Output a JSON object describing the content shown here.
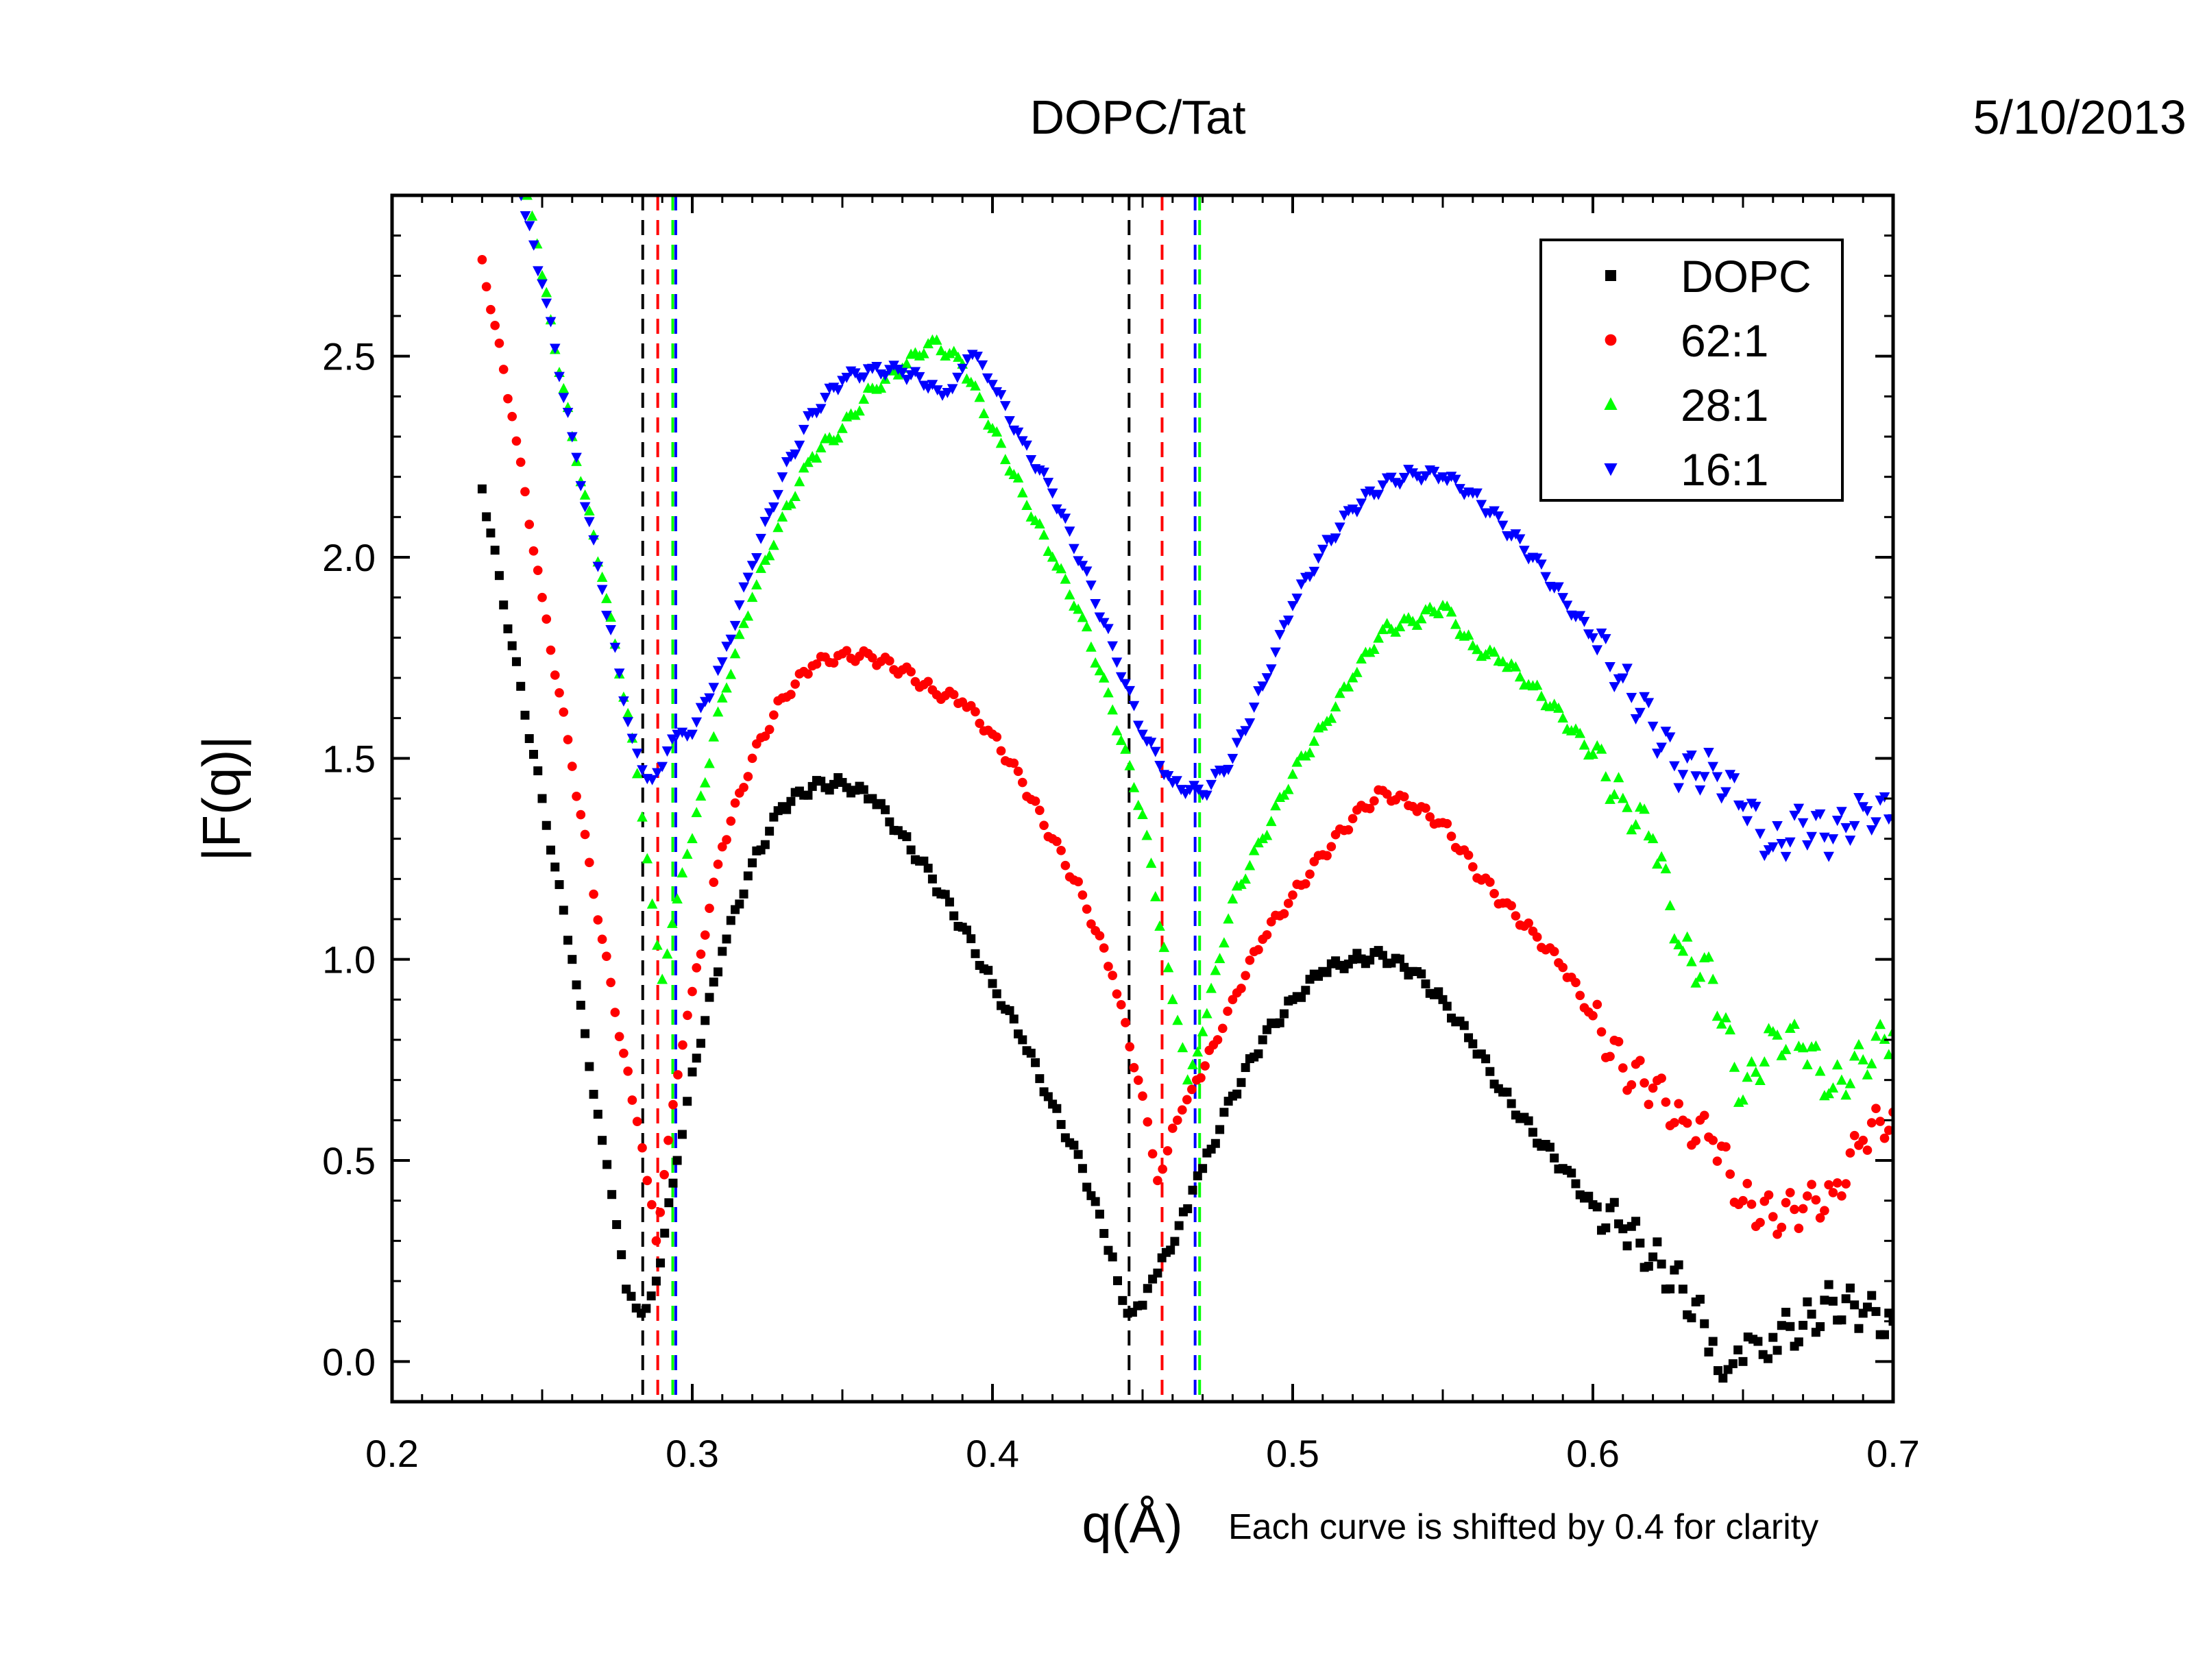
{
  "chart_data": {
    "type": "scatter",
    "title": "DOPC/Tat",
    "date": "5/10/2013",
    "xlabel": "q(Å)",
    "ylabel": "|F(q)|",
    "note": "Each curve is shifted by 0.4 for clarity",
    "xlim": [
      0.2,
      0.7
    ],
    "ylim": [
      -0.1,
      2.9
    ],
    "x_ticks": [
      "0.2",
      "0.3",
      "0.4",
      "0.5",
      "0.6",
      "0.7"
    ],
    "y_ticks": [
      "0.0",
      "0.5",
      "1.0",
      "1.5",
      "2.0",
      "2.5"
    ],
    "legend_position": "top-right",
    "grid": false,
    "series": [
      {
        "name": "DOPC",
        "color": "#000000",
        "marker": "square",
        "points": [
          [
            0.23,
            2.17
          ],
          [
            0.24,
            1.78
          ],
          [
            0.25,
            1.4
          ],
          [
            0.26,
            1.0
          ],
          [
            0.27,
            0.55
          ],
          [
            0.278,
            0.18
          ],
          [
            0.283,
            0.12
          ],
          [
            0.288,
            0.2
          ],
          [
            0.295,
            0.5
          ],
          [
            0.3,
            0.72
          ],
          [
            0.31,
            1.02
          ],
          [
            0.32,
            1.24
          ],
          [
            0.33,
            1.38
          ],
          [
            0.34,
            1.43
          ],
          [
            0.35,
            1.44
          ],
          [
            0.36,
            1.4
          ],
          [
            0.37,
            1.31
          ],
          [
            0.38,
            1.2
          ],
          [
            0.39,
            1.08
          ],
          [
            0.4,
            0.94
          ],
          [
            0.41,
            0.8
          ],
          [
            0.42,
            0.64
          ],
          [
            0.43,
            0.48
          ],
          [
            0.44,
            0.26
          ],
          [
            0.445,
            0.12
          ],
          [
            0.45,
            0.14
          ],
          [
            0.455,
            0.22
          ],
          [
            0.465,
            0.38
          ],
          [
            0.47,
            0.48
          ],
          [
            0.48,
            0.66
          ],
          [
            0.49,
            0.8
          ],
          [
            0.5,
            0.9
          ],
          [
            0.51,
            0.97
          ],
          [
            0.52,
            1.0
          ],
          [
            0.53,
            1.01
          ],
          [
            0.54,
            0.97
          ],
          [
            0.55,
            0.9
          ],
          [
            0.56,
            0.79
          ],
          [
            0.57,
            0.67
          ],
          [
            0.58,
            0.57
          ],
          [
            0.59,
            0.48
          ],
          [
            0.6,
            0.39
          ],
          [
            0.61,
            0.33
          ],
          [
            0.62,
            0.26
          ],
          [
            0.63,
            0.18
          ],
          [
            0.64,
            0.05
          ],
          [
            0.645,
            -0.02
          ],
          [
            0.65,
            0.0
          ],
          [
            0.655,
            0.05
          ],
          [
            0.66,
            0.06
          ],
          [
            0.67,
            0.09
          ],
          [
            0.68,
            0.15
          ],
          [
            0.69,
            0.12
          ],
          [
            0.7,
            0.1
          ]
        ]
      },
      {
        "name": "62:1",
        "color": "#ff0000",
        "marker": "circle",
        "points": [
          [
            0.23,
            2.74
          ],
          [
            0.24,
            2.35
          ],
          [
            0.25,
            1.9
          ],
          [
            0.26,
            1.48
          ],
          [
            0.27,
            1.05
          ],
          [
            0.28,
            0.65
          ],
          [
            0.285,
            0.45
          ],
          [
            0.288,
            0.3
          ],
          [
            0.292,
            0.55
          ],
          [
            0.3,
            0.92
          ],
          [
            0.31,
            1.28
          ],
          [
            0.32,
            1.5
          ],
          [
            0.33,
            1.65
          ],
          [
            0.34,
            1.73
          ],
          [
            0.35,
            1.76
          ],
          [
            0.36,
            1.75
          ],
          [
            0.37,
            1.72
          ],
          [
            0.38,
            1.67
          ],
          [
            0.39,
            1.64
          ],
          [
            0.4,
            1.56
          ],
          [
            0.41,
            1.44
          ],
          [
            0.42,
            1.3
          ],
          [
            0.43,
            1.16
          ],
          [
            0.44,
            0.96
          ],
          [
            0.45,
            0.66
          ],
          [
            0.455,
            0.45
          ],
          [
            0.46,
            0.58
          ],
          [
            0.468,
            0.7
          ],
          [
            0.475,
            0.8
          ],
          [
            0.48,
            0.9
          ],
          [
            0.49,
            1.05
          ],
          [
            0.5,
            1.16
          ],
          [
            0.51,
            1.26
          ],
          [
            0.52,
            1.35
          ],
          [
            0.53,
            1.42
          ],
          [
            0.54,
            1.38
          ],
          [
            0.55,
            1.34
          ],
          [
            0.56,
            1.23
          ],
          [
            0.57,
            1.14
          ],
          [
            0.58,
            1.07
          ],
          [
            0.59,
            0.98
          ],
          [
            0.6,
            0.86
          ],
          [
            0.61,
            0.73
          ],
          [
            0.62,
            0.68
          ],
          [
            0.63,
            0.6
          ],
          [
            0.64,
            0.55
          ],
          [
            0.65,
            0.4
          ],
          [
            0.66,
            0.36
          ],
          [
            0.67,
            0.38
          ],
          [
            0.68,
            0.42
          ],
          [
            0.69,
            0.55
          ],
          [
            0.7,
            0.62
          ]
        ]
      },
      {
        "name": "28:1",
        "color": "#00ff00",
        "marker": "triangle-up",
        "points": [
          [
            0.245,
            2.9
          ],
          [
            0.25,
            2.7
          ],
          [
            0.26,
            2.3
          ],
          [
            0.27,
            1.95
          ],
          [
            0.28,
            1.55
          ],
          [
            0.285,
            1.25
          ],
          [
            0.29,
            0.95
          ],
          [
            0.295,
            1.15
          ],
          [
            0.3,
            1.3
          ],
          [
            0.31,
            1.65
          ],
          [
            0.32,
            1.9
          ],
          [
            0.33,
            2.1
          ],
          [
            0.34,
            2.25
          ],
          [
            0.35,
            2.32
          ],
          [
            0.36,
            2.42
          ],
          [
            0.37,
            2.47
          ],
          [
            0.38,
            2.54
          ],
          [
            0.39,
            2.48
          ],
          [
            0.4,
            2.32
          ],
          [
            0.41,
            2.16
          ],
          [
            0.42,
            2.0
          ],
          [
            0.43,
            1.85
          ],
          [
            0.44,
            1.62
          ],
          [
            0.45,
            1.36
          ],
          [
            0.46,
            0.9
          ],
          [
            0.465,
            0.7
          ],
          [
            0.47,
            0.82
          ],
          [
            0.48,
            1.15
          ],
          [
            0.49,
            1.3
          ],
          [
            0.5,
            1.46
          ],
          [
            0.51,
            1.58
          ],
          [
            0.52,
            1.7
          ],
          [
            0.53,
            1.82
          ],
          [
            0.54,
            1.84
          ],
          [
            0.55,
            1.88
          ],
          [
            0.56,
            1.78
          ],
          [
            0.57,
            1.74
          ],
          [
            0.58,
            1.68
          ],
          [
            0.59,
            1.6
          ],
          [
            0.6,
            1.51
          ],
          [
            0.61,
            1.4
          ],
          [
            0.62,
            1.3
          ],
          [
            0.63,
            1.02
          ],
          [
            0.64,
            0.95
          ],
          [
            0.65,
            0.65
          ],
          [
            0.66,
            0.82
          ],
          [
            0.67,
            0.78
          ],
          [
            0.68,
            0.68
          ],
          [
            0.69,
            0.75
          ],
          [
            0.7,
            0.82
          ]
        ]
      },
      {
        "name": "16:1",
        "color": "#0000ff",
        "marker": "triangle-down",
        "points": [
          [
            0.243,
            2.9
          ],
          [
            0.25,
            2.68
          ],
          [
            0.26,
            2.3
          ],
          [
            0.27,
            1.92
          ],
          [
            0.28,
            1.55
          ],
          [
            0.285,
            1.45
          ],
          [
            0.29,
            1.48
          ],
          [
            0.295,
            1.56
          ],
          [
            0.3,
            1.56
          ],
          [
            0.31,
            1.74
          ],
          [
            0.32,
            1.98
          ],
          [
            0.33,
            2.2
          ],
          [
            0.34,
            2.36
          ],
          [
            0.35,
            2.44
          ],
          [
            0.36,
            2.47
          ],
          [
            0.37,
            2.46
          ],
          [
            0.38,
            2.43
          ],
          [
            0.385,
            2.41
          ],
          [
            0.39,
            2.47
          ],
          [
            0.395,
            2.5
          ],
          [
            0.4,
            2.43
          ],
          [
            0.41,
            2.29
          ],
          [
            0.42,
            2.16
          ],
          [
            0.43,
            1.98
          ],
          [
            0.44,
            1.78
          ],
          [
            0.45,
            1.56
          ],
          [
            0.46,
            1.44
          ],
          [
            0.47,
            1.41
          ],
          [
            0.48,
            1.5
          ],
          [
            0.49,
            1.68
          ],
          [
            0.5,
            1.88
          ],
          [
            0.51,
            2.02
          ],
          [
            0.52,
            2.12
          ],
          [
            0.53,
            2.18
          ],
          [
            0.54,
            2.21
          ],
          [
            0.55,
            2.2
          ],
          [
            0.56,
            2.16
          ],
          [
            0.57,
            2.08
          ],
          [
            0.58,
            2.0
          ],
          [
            0.59,
            1.9
          ],
          [
            0.6,
            1.8
          ],
          [
            0.61,
            1.7
          ],
          [
            0.62,
            1.58
          ],
          [
            0.63,
            1.46
          ],
          [
            0.64,
            1.48
          ],
          [
            0.65,
            1.38
          ],
          [
            0.66,
            1.28
          ],
          [
            0.67,
            1.34
          ],
          [
            0.68,
            1.3
          ],
          [
            0.69,
            1.38
          ],
          [
            0.7,
            1.35
          ]
        ]
      }
    ],
    "vlines": [
      {
        "x": 0.2835,
        "color": "#000000"
      },
      {
        "x": 0.2885,
        "color": "#ff0000"
      },
      {
        "x": 0.2935,
        "color": "#00ff00"
      },
      {
        "x": 0.2945,
        "color": "#0000ff"
      },
      {
        "x": 0.4455,
        "color": "#000000"
      },
      {
        "x": 0.4565,
        "color": "#ff0000"
      },
      {
        "x": 0.4675,
        "color": "#0000ff"
      },
      {
        "x": 0.469,
        "color": "#00ff00"
      }
    ]
  }
}
